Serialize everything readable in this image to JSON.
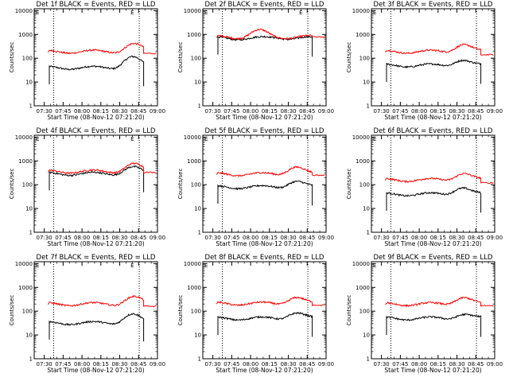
{
  "colors": {
    "events": "#000000",
    "lld": "#ff0000",
    "axes": "#000000",
    "background": "#ffffff"
  },
  "panel_titles": [
    "Det 1f BLACK = Events, RED = LLD",
    "Det 2f BLACK = Events, RED = LLD",
    "Det 3f BLACK = Events, RED = LLD",
    "Det 4f BLACK = Events, RED = LLD",
    "Det 5f BLACK = Events, RED = LLD",
    "Det 6f BLACK = Events, RED = LLD",
    "Det 7f BLACK = Events, RED = LLD",
    "Det 8f BLACK = Events, RED = LLD",
    "Det 9f BLACK = Events, RED = LLD"
  ],
  "chart_data": [
    {
      "type": "line",
      "title": "Det 1f BLACK = Events, RED = LLD",
      "xlabel": "Start Time (08-Nov-12 07:21:20)",
      "ylabel": "Counts/sec",
      "xticks": [
        "07:30",
        "07:45",
        "08:00",
        "08:15",
        "08:30",
        "08:45",
        "09:00"
      ],
      "yticks": [
        "1",
        "10",
        "100",
        "1000",
        "10000"
      ],
      "yscale": "log",
      "xlim_minutes": [
        0,
        98
      ],
      "ylim": [
        1,
        12000
      ],
      "markers": [
        "E",
        "E"
      ],
      "vlines_minutes": [
        15.5,
        83.5
      ],
      "data_span_minutes": [
        12,
        87
      ],
      "series": [
        {
          "name": "Events",
          "color": "#000000",
          "level": 40,
          "hump_peak": 115,
          "hump_center_minute": 78
        },
        {
          "name": "LLD",
          "color": "#ff0000",
          "level": 190,
          "hump_peak": 400,
          "hump_center_minute": 79,
          "post_level": 160
        }
      ]
    },
    {
      "type": "line",
      "title": "Det 2f BLACK = Events, RED = LLD",
      "xlabel": "Start Time (08-Nov-12 07:21:20)",
      "ylabel": "Counts/sec",
      "xticks": [
        "07:30",
        "07:45",
        "08:00",
        "08:15",
        "08:30",
        "08:45",
        "09:00"
      ],
      "yticks": [
        "1",
        "10",
        "100",
        "1000",
        "10000"
      ],
      "yscale": "log",
      "xlim_minutes": [
        0,
        98
      ],
      "ylim": [
        1,
        12000
      ],
      "markers": [
        "E",
        "E"
      ],
      "vlines_minutes": [
        15.5,
        83.5
      ],
      "data_span_minutes": [
        12,
        87
      ],
      "series": [
        {
          "name": "Events",
          "color": "#000000",
          "level": 700,
          "hump_peak": 750,
          "hump_center_minute": 60
        },
        {
          "name": "LLD",
          "color": "#ff0000",
          "level": 780,
          "hump_peak": 1500,
          "hump_center_minute": 45,
          "post_level": 780
        }
      ]
    },
    {
      "type": "line",
      "title": "Det 3f BLACK = Events, RED = LLD",
      "xlabel": "Start Time (08-Nov-12 07:21:20)",
      "ylabel": "Counts/sec",
      "xticks": [
        "07:30",
        "07:45",
        "08:00",
        "08:15",
        "08:30",
        "08:45",
        "09:00"
      ],
      "yticks": [
        "1",
        "10",
        "100",
        "1000",
        "10000"
      ],
      "yscale": "log",
      "xlim_minutes": [
        0,
        98
      ],
      "ylim": [
        1,
        12000
      ],
      "markers": [
        "E"
      ],
      "vlines_minutes": [
        15.5,
        83.5
      ],
      "data_span_minutes": [
        12,
        87
      ],
      "series": [
        {
          "name": "Events",
          "color": "#000000",
          "level": 50,
          "hump_peak": 85,
          "hump_center_minute": 72
        },
        {
          "name": "LLD",
          "color": "#ff0000",
          "level": 190,
          "hump_peak": 380,
          "hump_center_minute": 73,
          "post_level": 140
        }
      ]
    },
    {
      "type": "line",
      "title": "Det 4f BLACK = Events, RED = LLD",
      "xlabel": "Start Time (08-Nov-12 07:21:20)",
      "ylabel": "Counts/sec",
      "xticks": [
        "07:30",
        "07:45",
        "08:00",
        "08:15",
        "08:30",
        "08:45",
        "09:00"
      ],
      "yticks": [
        "1",
        "10",
        "100",
        "1000",
        "10000"
      ],
      "yscale": "log",
      "xlim_minutes": [
        0,
        98
      ],
      "ylim": [
        1,
        12000
      ],
      "markers": [
        "E",
        "E"
      ],
      "vlines_minutes": [
        15.5,
        83.5
      ],
      "data_span_minutes": [
        12,
        87
      ],
      "series": [
        {
          "name": "Events",
          "color": "#000000",
          "level": 290,
          "hump_peak": 560,
          "hump_center_minute": 78
        },
        {
          "name": "LLD",
          "color": "#ff0000",
          "level": 360,
          "hump_peak": 760,
          "hump_center_minute": 79,
          "post_level": 330
        }
      ]
    },
    {
      "type": "line",
      "title": "Det 5f BLACK = Events, RED = LLD",
      "xlabel": "Start Time (08-Nov-12 07:21:20)",
      "ylabel": "Counts/sec",
      "xticks": [
        "07:30",
        "07:45",
        "08:00",
        "08:15",
        "08:30",
        "08:45",
        "09:00"
      ],
      "yticks": [
        "1",
        "10",
        "100",
        "1000",
        "10000"
      ],
      "yscale": "log",
      "xlim_minutes": [
        0,
        98
      ],
      "ylim": [
        1,
        12000
      ],
      "markers": [
        "E"
      ],
      "vlines_minutes": [
        15.5,
        83.5
      ],
      "data_span_minutes": [
        12,
        87
      ],
      "series": [
        {
          "name": "Events",
          "color": "#000000",
          "level": 80,
          "hump_peak": 140,
          "hump_center_minute": 74
        },
        {
          "name": "LLD",
          "color": "#ff0000",
          "level": 280,
          "hump_peak": 560,
          "hump_center_minute": 74,
          "post_level": 250
        }
      ]
    },
    {
      "type": "line",
      "title": "Det 6f BLACK = Events, RED = LLD",
      "xlabel": "Start Time (08-Nov-12 07:21:20)",
      "ylabel": "Counts/sec",
      "xticks": [
        "07:30",
        "07:45",
        "08:00",
        "08:15",
        "08:30",
        "08:45",
        "09:00"
      ],
      "yticks": [
        "1",
        "10",
        "100",
        "1000",
        "10000"
      ],
      "yscale": "log",
      "xlim_minutes": [
        0,
        98
      ],
      "ylim": [
        1,
        12000
      ],
      "markers": [
        "E"
      ],
      "vlines_minutes": [
        15.5,
        83.5
      ],
      "data_span_minutes": [
        12,
        87
      ],
      "series": [
        {
          "name": "Events",
          "color": "#000000",
          "level": 40,
          "hump_peak": 75,
          "hump_center_minute": 72
        },
        {
          "name": "LLD",
          "color": "#ff0000",
          "level": 160,
          "hump_peak": 300,
          "hump_center_minute": 73,
          "post_level": 120
        }
      ]
    },
    {
      "type": "line",
      "title": "Det 7f BLACK = Events, RED = LLD",
      "xlabel": "Start Time (08-Nov-12 07:21:20)",
      "ylabel": "Counts/sec",
      "xticks": [
        "07:30",
        "07:45",
        "08:00",
        "08:15",
        "08:30",
        "08:45",
        "09:00"
      ],
      "yticks": [
        "1",
        "10",
        "100",
        "1000",
        "10000"
      ],
      "yscale": "log",
      "xlim_minutes": [
        0,
        98
      ],
      "ylim": [
        1,
        12000
      ],
      "markers": [
        "E",
        "E"
      ],
      "vlines_minutes": [
        15.5,
        83.5
      ],
      "data_span_minutes": [
        12,
        87
      ],
      "series": [
        {
          "name": "Events",
          "color": "#000000",
          "level": 32,
          "hump_peak": 75,
          "hump_center_minute": 78
        },
        {
          "name": "LLD",
          "color": "#ff0000",
          "level": 200,
          "hump_peak": 400,
          "hump_center_minute": 79,
          "post_level": 160
        }
      ]
    },
    {
      "type": "line",
      "title": "Det 8f BLACK = Events, RED = LLD",
      "xlabel": "Start Time (08-Nov-12 07:21:20)",
      "ylabel": "Counts/sec",
      "xticks": [
        "07:30",
        "07:45",
        "08:00",
        "08:15",
        "08:30",
        "08:45",
        "09:00"
      ],
      "yticks": [
        "1",
        "10",
        "100",
        "1000",
        "10000"
      ],
      "yscale": "log",
      "xlim_minutes": [
        0,
        98
      ],
      "ylim": [
        1,
        12000
      ],
      "markers": [
        "E"
      ],
      "vlines_minutes": [
        15.5,
        83.5
      ],
      "data_span_minutes": [
        12,
        87
      ],
      "series": [
        {
          "name": "Events",
          "color": "#000000",
          "level": 50,
          "hump_peak": 85,
          "hump_center_minute": 74
        },
        {
          "name": "LLD",
          "color": "#ff0000",
          "level": 210,
          "hump_peak": 380,
          "hump_center_minute": 74,
          "post_level": 180
        }
      ]
    },
    {
      "type": "line",
      "title": "Det 9f BLACK = Events, RED = LLD",
      "xlabel": "Start Time (08-Nov-12 07:21:20)",
      "ylabel": "Counts/sec",
      "xticks": [
        "07:30",
        "07:45",
        "08:00",
        "08:15",
        "08:30",
        "08:45",
        "09:00"
      ],
      "yticks": [
        "1",
        "10",
        "100",
        "1000",
        "10000"
      ],
      "yscale": "log",
      "xlim_minutes": [
        0,
        98
      ],
      "ylim": [
        1,
        12000
      ],
      "markers": [
        "E"
      ],
      "vlines_minutes": [
        15.5,
        83.5
      ],
      "data_span_minutes": [
        12,
        87
      ],
      "series": [
        {
          "name": "Events",
          "color": "#000000",
          "level": 50,
          "hump_peak": 75,
          "hump_center_minute": 73
        },
        {
          "name": "LLD",
          "color": "#ff0000",
          "level": 200,
          "hump_peak": 380,
          "hump_center_minute": 73,
          "post_level": 170
        }
      ]
    }
  ]
}
